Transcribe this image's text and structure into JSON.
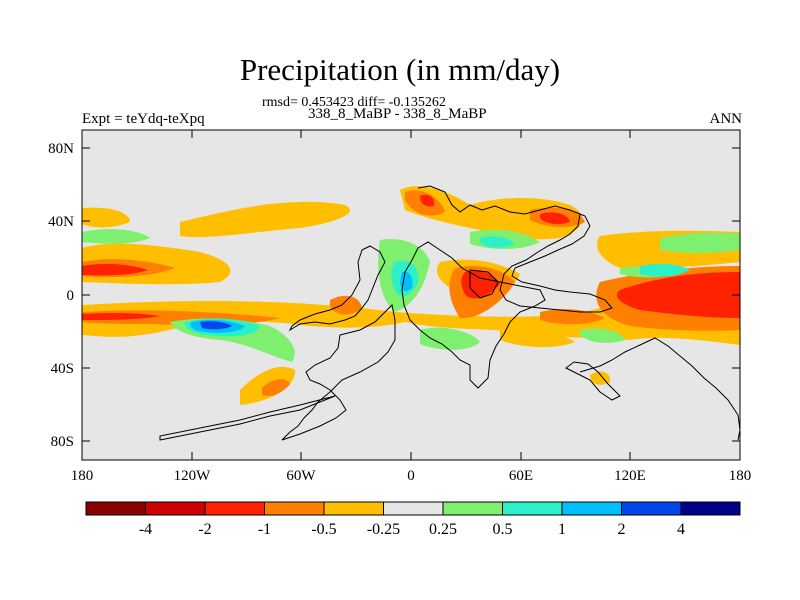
{
  "figure": {
    "title": "Precipitation (in mm/day)",
    "stats": "rmsd= 0.453423  diff= -0.135262",
    "case": "338_8_MaBP - 338_8_MaBP",
    "experiment": "Expt = teYdq-teXpq",
    "season": "ANN"
  },
  "axes": {
    "lat_labels": [
      "80N",
      "40N",
      "0",
      "40S",
      "80S"
    ],
    "lon_labels": [
      "180",
      "120W",
      "60W",
      "0",
      "60E",
      "120E",
      "180"
    ]
  },
  "colorbar": {
    "labels": [
      "-4",
      "-2",
      "-1",
      "-0.5",
      "-0.25",
      "0.25",
      "0.5",
      "1",
      "2",
      "4"
    ],
    "colors": [
      "#8b0000",
      "#cd0000",
      "#ff2200",
      "#ff7f00",
      "#ffbf00",
      "#e6e6e6",
      "#7fef6f",
      "#2ef0c8",
      "#00bfff",
      "#0044ee",
      "#00008b"
    ]
  },
  "colors": {
    "background_field": "#e6e6e6",
    "coastline": "#000000"
  }
}
